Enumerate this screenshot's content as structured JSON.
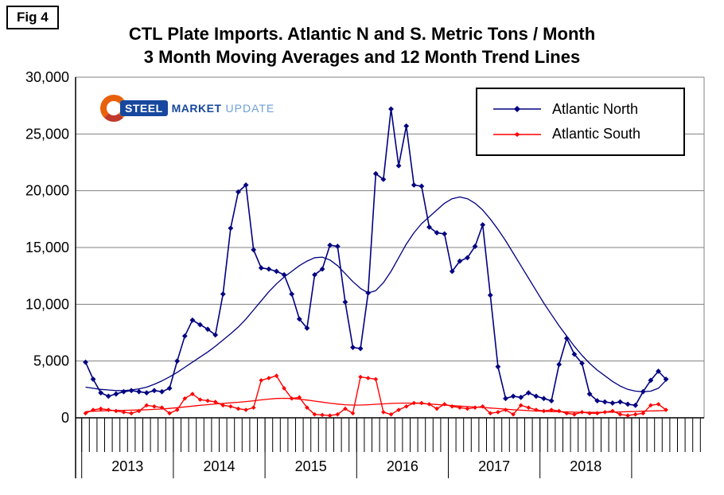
{
  "figure": {
    "label": "Fig 4"
  },
  "logo": {
    "word1": "STEEL",
    "word2": "MARKET",
    "word3": "UPDATE"
  },
  "chart_data": {
    "type": "line",
    "title": "CTL Plate Imports. Atlantic N and S. Metric Tons / Month",
    "subtitle": "3 Month Moving Averages and 12 Month Trend Lines",
    "x_unit": "month",
    "x_start": "2013-01",
    "year_labels": [
      "2013",
      "2014",
      "2015",
      "2016",
      "2017",
      "2018"
    ],
    "ylim": [
      0,
      30000
    ],
    "y_tick_interval": 5000,
    "y_tick_labels": [
      "0",
      "5,000",
      "10,000",
      "15,000",
      "20,000",
      "25,000",
      "30,000"
    ],
    "grid": "horizontal",
    "legend_position": "top-right",
    "colors": {
      "north": "#000080",
      "south": "#ff0000",
      "gridline": "#808080",
      "axis": "#000000"
    },
    "series": [
      {
        "name": "Atlantic North",
        "role": "3-month moving average",
        "color": "#000080",
        "marker": "diamond",
        "values": [
          4900,
          3400,
          2200,
          1900,
          2100,
          2300,
          2400,
          2300,
          2200,
          2400,
          2300,
          2600,
          5000,
          7200,
          8600,
          8200,
          7800,
          7300,
          10900,
          16700,
          19900,
          20500,
          14800,
          13200,
          13100,
          12900,
          12600,
          10900,
          8700,
          7900,
          12600,
          13100,
          15200,
          15100,
          10200,
          6200,
          6100,
          11000,
          21500,
          21000,
          27200,
          22200,
          25700,
          20500,
          20400,
          16800,
          16300,
          16200,
          12900,
          13800,
          14100,
          15100,
          17000,
          10800,
          4500,
          1700,
          1900,
          1800,
          2200,
          1900,
          1700,
          1500,
          4700,
          7000,
          5600,
          4800,
          2100,
          1500,
          1400,
          1300,
          1400,
          1200,
          1100,
          2300,
          3300,
          4100,
          3400
        ]
      },
      {
        "name": "Atlantic South",
        "role": "3-month moving average",
        "color": "#ff0000",
        "marker": "diamond",
        "values": [
          400,
          700,
          800,
          700,
          600,
          500,
          400,
          600,
          1100,
          1000,
          900,
          400,
          700,
          1700,
          2100,
          1600,
          1500,
          1400,
          1100,
          1000,
          800,
          700,
          900,
          3300,
          3500,
          3700,
          2600,
          1700,
          1800,
          900,
          300,
          250,
          200,
          300,
          800,
          400,
          3600,
          3500,
          3400,
          500,
          300,
          700,
          1000,
          1300,
          1300,
          1200,
          800,
          1200,
          1000,
          900,
          800,
          900,
          1000,
          400,
          500,
          700,
          300,
          1100,
          900,
          700,
          600,
          700,
          600,
          400,
          300,
          500,
          400,
          400,
          500,
          600,
          300,
          200,
          300,
          400,
          1100,
          1200,
          700
        ]
      },
      {
        "name": "Atlantic North trend",
        "role": "12-month trend line",
        "color": "#000080",
        "marker": "none",
        "values": [
          2700,
          2600,
          2500,
          2450,
          2400,
          2400,
          2450,
          2550,
          2700,
          2950,
          3250,
          3600,
          4000,
          4450,
          4900,
          5350,
          5800,
          6300,
          6850,
          7400,
          8000,
          8700,
          9500,
          10300,
          11100,
          11800,
          12400,
          12900,
          13400,
          13800,
          14100,
          14150,
          13900,
          13400,
          12700,
          12000,
          11400,
          11000,
          11200,
          11900,
          12900,
          14100,
          15300,
          16300,
          17100,
          17700,
          18300,
          18900,
          19300,
          19450,
          19300,
          18900,
          18300,
          17500,
          16600,
          15600,
          14500,
          13400,
          12300,
          11200,
          10100,
          9100,
          8100,
          7200,
          6300,
          5500,
          4800,
          4200,
          3700,
          3200,
          2800,
          2500,
          2350,
          2300,
          2350,
          2600,
          3300
        ]
      },
      {
        "name": "Atlantic South trend",
        "role": "12-month trend line",
        "color": "#ff0000",
        "marker": "none",
        "values": [
          550,
          580,
          610,
          630,
          650,
          660,
          670,
          690,
          710,
          740,
          780,
          830,
          890,
          960,
          1030,
          1100,
          1160,
          1220,
          1270,
          1320,
          1370,
          1430,
          1500,
          1580,
          1650,
          1700,
          1720,
          1700,
          1640,
          1560,
          1470,
          1380,
          1290,
          1210,
          1150,
          1120,
          1120,
          1150,
          1190,
          1230,
          1270,
          1290,
          1300,
          1290,
          1260,
          1220,
          1170,
          1120,
          1070,
          1030,
          990,
          950,
          910,
          860,
          810,
          760,
          710,
          670,
          630,
          600,
          570,
          550,
          530,
          510,
          500,
          490,
          480,
          480,
          490,
          500,
          520,
          540,
          560,
          580,
          600,
          620,
          640
        ]
      }
    ]
  }
}
